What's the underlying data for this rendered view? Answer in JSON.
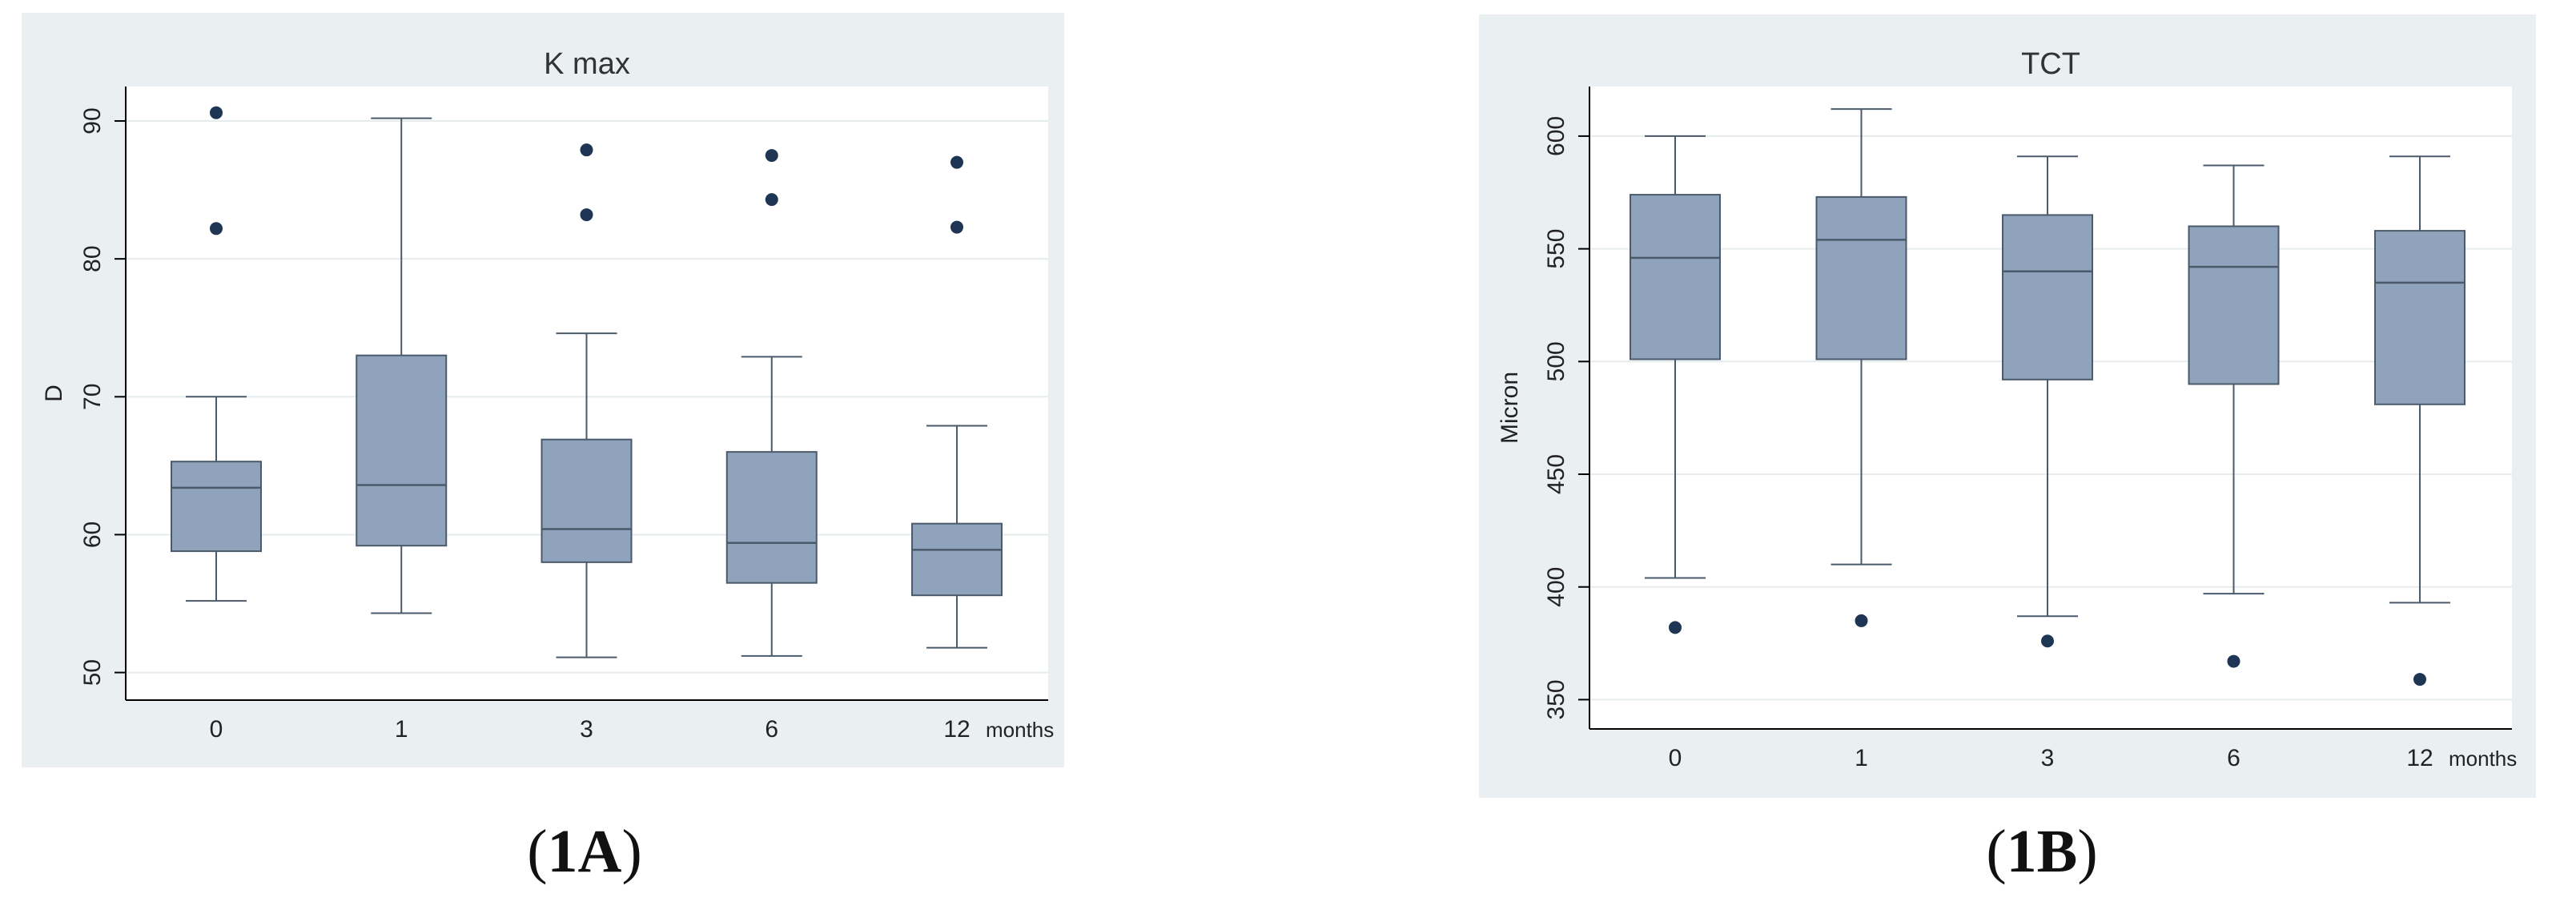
{
  "chart_data": [
    {
      "type": "box",
      "title": "K max",
      "ylabel": "D",
      "xlabel": "months",
      "categories": [
        "0",
        "1",
        "3",
        "6",
        "12"
      ],
      "ylim": [
        48,
        92.5
      ],
      "yticks": [
        50,
        60,
        70,
        80,
        90
      ],
      "grid": true,
      "box_color": "#8fa4bc",
      "boxes": [
        {
          "category": "0",
          "whisker_low": 55.2,
          "q1": 58.8,
          "median": 63.4,
          "q3": 65.3,
          "whisker_high": 70.0,
          "outliers": [
            82.2,
            90.6
          ]
        },
        {
          "category": "1",
          "whisker_low": 54.3,
          "q1": 59.2,
          "median": 63.6,
          "q3": 73.0,
          "whisker_high": 90.2,
          "outliers": []
        },
        {
          "category": "3",
          "whisker_low": 51.1,
          "q1": 58.0,
          "median": 60.4,
          "q3": 66.9,
          "whisker_high": 74.6,
          "outliers": [
            83.2,
            87.9
          ]
        },
        {
          "category": "6",
          "whisker_low": 51.2,
          "q1": 56.5,
          "median": 59.4,
          "q3": 66.0,
          "whisker_high": 72.9,
          "outliers": [
            84.3,
            87.5
          ]
        },
        {
          "category": "12",
          "whisker_low": 51.8,
          "q1": 55.6,
          "median": 58.9,
          "q3": 60.8,
          "whisker_high": 67.9,
          "outliers": [
            82.3,
            87.0
          ]
        }
      ]
    },
    {
      "type": "box",
      "title": "TCT",
      "ylabel": "Micron",
      "xlabel": "months",
      "categories": [
        "0",
        "1",
        "3",
        "6",
        "12"
      ],
      "ylim": [
        337,
        622
      ],
      "yticks": [
        350,
        400,
        450,
        500,
        550,
        600
      ],
      "grid": true,
      "box_color": "#8fa4bc",
      "boxes": [
        {
          "category": "0",
          "whisker_low": 404,
          "q1": 501,
          "median": 546,
          "q3": 574,
          "whisker_high": 600,
          "outliers": [
            382
          ]
        },
        {
          "category": "1",
          "whisker_low": 410,
          "q1": 501,
          "median": 554,
          "q3": 573,
          "whisker_high": 612,
          "outliers": [
            385
          ]
        },
        {
          "category": "3",
          "whisker_low": 387,
          "q1": 492,
          "median": 540,
          "q3": 565,
          "whisker_high": 591,
          "outliers": [
            376
          ]
        },
        {
          "category": "6",
          "whisker_low": 397,
          "q1": 490,
          "median": 542,
          "q3": 560,
          "whisker_high": 587,
          "outliers": [
            367
          ]
        },
        {
          "category": "12",
          "whisker_low": 393,
          "q1": 481,
          "median": 535,
          "q3": 558,
          "whisker_high": 591,
          "outliers": [
            359
          ]
        }
      ]
    }
  ],
  "captions": {
    "a_open": "(",
    "a_label": "1A",
    "a_close": ")",
    "b_open": "(",
    "b_label": "1B",
    "b_close": ")"
  }
}
